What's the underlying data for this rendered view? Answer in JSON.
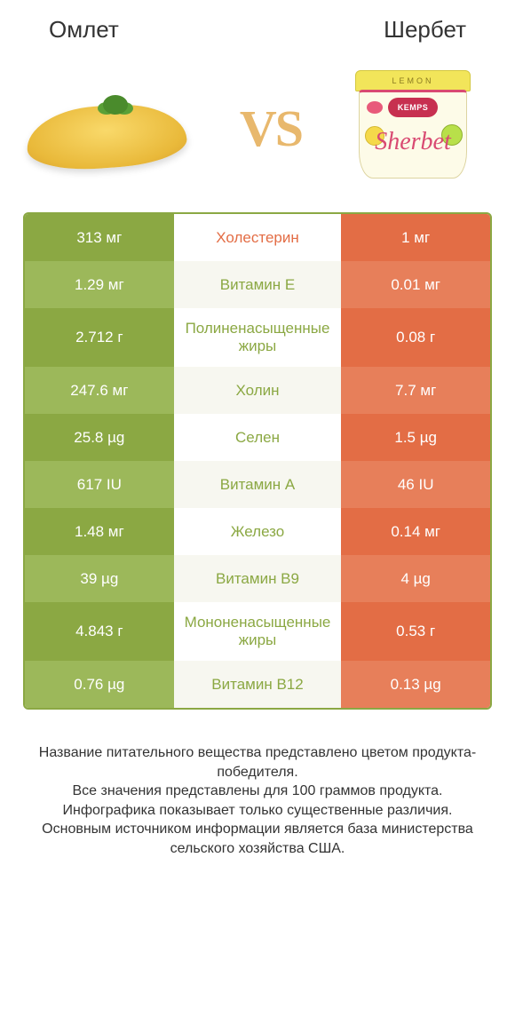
{
  "header": {
    "left": "Омлет",
    "right": "Шербет"
  },
  "vs_label": "VS",
  "sherbet_tub": {
    "lid_text": "LEMON",
    "brand": "KEMPS",
    "script": "Sherbet"
  },
  "colors": {
    "left_bg": "#8ba843",
    "left_bg_alt": "#9cb85a",
    "right_bg": "#e36d45",
    "right_bg_alt": "#e77f5a",
    "mid_green": "#8ba843",
    "mid_orange": "#e36d45",
    "border": "#8ba843",
    "background": "#ffffff"
  },
  "table": {
    "rows": [
      {
        "left": "313 мг",
        "label": "Холестерин",
        "label_color": "orange",
        "right": "1 мг",
        "tall": false
      },
      {
        "left": "1.29 мг",
        "label": "Витамин E",
        "label_color": "green",
        "right": "0.01 мг",
        "tall": false
      },
      {
        "left": "2.712 г",
        "label": "Полиненасыщенные жиры",
        "label_color": "green",
        "right": "0.08 г",
        "tall": true
      },
      {
        "left": "247.6 мг",
        "label": "Холин",
        "label_color": "green",
        "right": "7.7 мг",
        "tall": false
      },
      {
        "left": "25.8 µg",
        "label": "Селен",
        "label_color": "green",
        "right": "1.5 µg",
        "tall": false
      },
      {
        "left": "617 IU",
        "label": "Витамин A",
        "label_color": "green",
        "right": "46 IU",
        "tall": false
      },
      {
        "left": "1.48 мг",
        "label": "Железо",
        "label_color": "green",
        "right": "0.14 мг",
        "tall": false
      },
      {
        "left": "39 µg",
        "label": "Витамин B9",
        "label_color": "green",
        "right": "4 µg",
        "tall": false
      },
      {
        "left": "4.843 г",
        "label": "Мононенасыщенные жиры",
        "label_color": "green",
        "right": "0.53 г",
        "tall": true
      },
      {
        "left": "0.76 µg",
        "label": "Витамин B12",
        "label_color": "green",
        "right": "0.13 µg",
        "tall": false
      }
    ]
  },
  "footer": {
    "line1": "Название питательного вещества представлено цветом продукта-победителя.",
    "line2": "Все значения представлены для 100 граммов продукта.",
    "line3": "Инфографика показывает только существенные различия.",
    "line4": "Основным источником информации является база министерства сельского хозяйства США."
  }
}
